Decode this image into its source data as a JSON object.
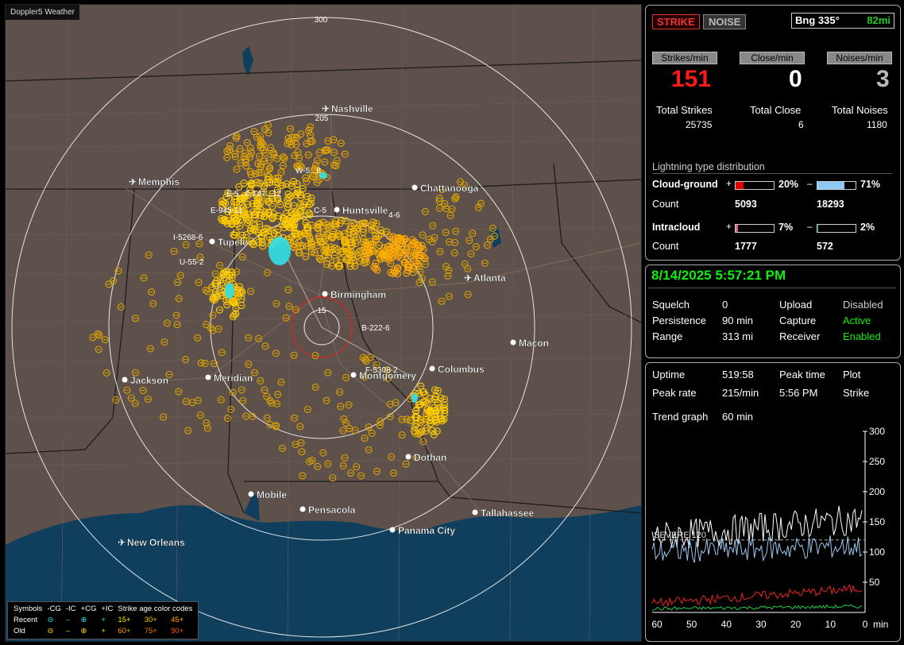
{
  "app_title": "Doppler5 Weather",
  "map": {
    "ring_labels": [
      "300",
      "205",
      "15"
    ],
    "cities": [
      {
        "name": "Nashville",
        "type": "airport"
      },
      {
        "name": "Memphis",
        "type": "airport"
      },
      {
        "name": "Chattanooga",
        "type": "city"
      },
      {
        "name": "Huntsville",
        "type": "city"
      },
      {
        "name": "Tupelo",
        "type": "city"
      },
      {
        "name": "Birmingham",
        "type": "city"
      },
      {
        "name": "Atlanta",
        "type": "airport"
      },
      {
        "name": "Macon",
        "type": "city"
      },
      {
        "name": "Jackson",
        "type": "city"
      },
      {
        "name": "Meridian",
        "type": "city"
      },
      {
        "name": "Montgomery",
        "type": "city"
      },
      {
        "name": "Columbus",
        "type": "city"
      },
      {
        "name": "Dothan",
        "type": "city"
      },
      {
        "name": "Mobile",
        "type": "city"
      },
      {
        "name": "Pensacola",
        "type": "city"
      },
      {
        "name": "Tallahassee",
        "type": "city"
      },
      {
        "name": "Panama City",
        "type": "city"
      },
      {
        "name": "New Orleans",
        "type": "airport"
      }
    ],
    "cell_tags": [
      "W-5...8",
      "E-5...0-147...12",
      "E-945-11",
      "C-5",
      "4-6",
      "I-5268-6",
      "U-55-2",
      "B-222-6",
      "F-5308-2"
    ]
  },
  "legend": {
    "symbols_label": "Symbols",
    "headers": [
      "-CG",
      "-IC",
      "+CG",
      "+IC"
    ],
    "age_label": "Strike age color codes",
    "recent_label": "Recent",
    "old_label": "Old",
    "recent_ages": [
      "15+",
      "30+",
      "45+"
    ],
    "old_ages": [
      "60+",
      "75+",
      "90+"
    ]
  },
  "stats": {
    "strike_button": "STRIKE",
    "noise_button": "NOISE",
    "bearing": "Bng 335°",
    "distance": "82mi",
    "strikes_per_min_label": "Strikes/min",
    "close_per_min_label": "Close/min",
    "noises_per_min_label": "Noises/min",
    "strikes_per_min": "151",
    "close_per_min": "0",
    "noises_per_min": "3",
    "total_strikes_label": "Total Strikes",
    "total_close_label": "Total Close",
    "total_noises_label": "Total Noises",
    "total_strikes": "25735",
    "total_close": "6",
    "total_noises": "1180",
    "dist_title": "Lightning type distribution",
    "cg_label": "Cloud-ground",
    "ic_label": "Intracloud",
    "count_label": "Count",
    "plus": "+",
    "minus": "–",
    "cg_pos_pct": "20%",
    "cg_neg_pct": "71%",
    "ic_pos_pct": "7%",
    "ic_neg_pct": "2%",
    "cg_pos_frac": 0.2,
    "cg_neg_frac": 0.71,
    "ic_pos_frac": 0.07,
    "ic_neg_frac": 0.02,
    "cg_pos_count": "5093",
    "cg_neg_count": "18293",
    "ic_pos_count": "1777",
    "ic_neg_count": "572"
  },
  "status": {
    "datetime": "8/14/2025 5:57:21 PM",
    "squelch_label": "Squelch",
    "squelch": "0",
    "persistence_label": "Persistence",
    "persistence": "90 min",
    "range_label": "Range",
    "range": "313 mi",
    "upload_label": "Upload",
    "upload": "Disabled",
    "capture_label": "Capture",
    "capture": "Active",
    "receiver_label": "Receiver",
    "receiver": "Enabled"
  },
  "trend": {
    "uptime_label": "Uptime",
    "uptime": "519:58",
    "peak_time_label": "Peak time",
    "peak_time": "5:56 PM",
    "plot_label": "Plot",
    "plot": "Strike",
    "peak_rate_label": "Peak rate",
    "peak_rate": "215/min",
    "trend_graph_label": "Trend graph",
    "trend_graph": "60 min",
    "severe_label": "SEVERE 120",
    "y_ticks": [
      "300",
      "250",
      "200",
      "150",
      "100",
      "50"
    ],
    "x_ticks": [
      "60",
      "50",
      "40",
      "30",
      "20",
      "10",
      "0"
    ],
    "x_unit": "min"
  },
  "colors": {
    "map_land": "#5e514b",
    "water": "#0f3f5c",
    "strike_recent": "#ffdd00",
    "strike_old": "#e6a800",
    "ic_strike": "#33e0e8",
    "cg_pos_bar": "#e00000",
    "cg_neg_bar": "#8ccaf5",
    "ic_pos_bar": "#e06090",
    "ic_neg_bar": "#10a040"
  }
}
